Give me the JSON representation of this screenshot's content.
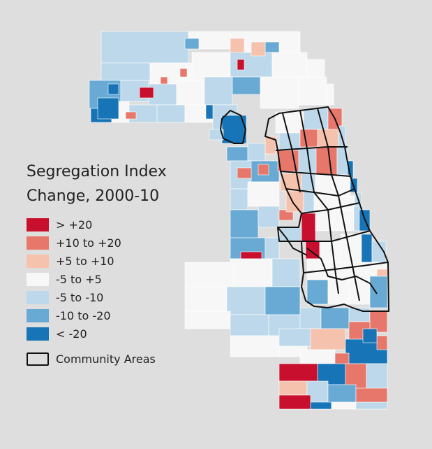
{
  "legend": {
    "title_line1": "Segregation Index",
    "title_line2": "Change, 2000-10",
    "classes": [
      {
        "label": "> +20",
        "color": "#c8102e"
      },
      {
        "label": "+10 to +20",
        "color": "#e8776b"
      },
      {
        "label": "+5 to +10",
        "color": "#f5c2ae"
      },
      {
        "label": "-5 to +5",
        "color": "#f7f7f7"
      },
      {
        "label": "-5 to -10",
        "color": "#bcd8ea"
      },
      {
        "label": "-10 to -20",
        "color": "#68aad4"
      },
      {
        "label": "< -20",
        "color": "#1774b6"
      }
    ],
    "boundary_label": "Community Areas"
  },
  "colors": {
    "background": "#dedede",
    "boundary": "#111111"
  }
}
